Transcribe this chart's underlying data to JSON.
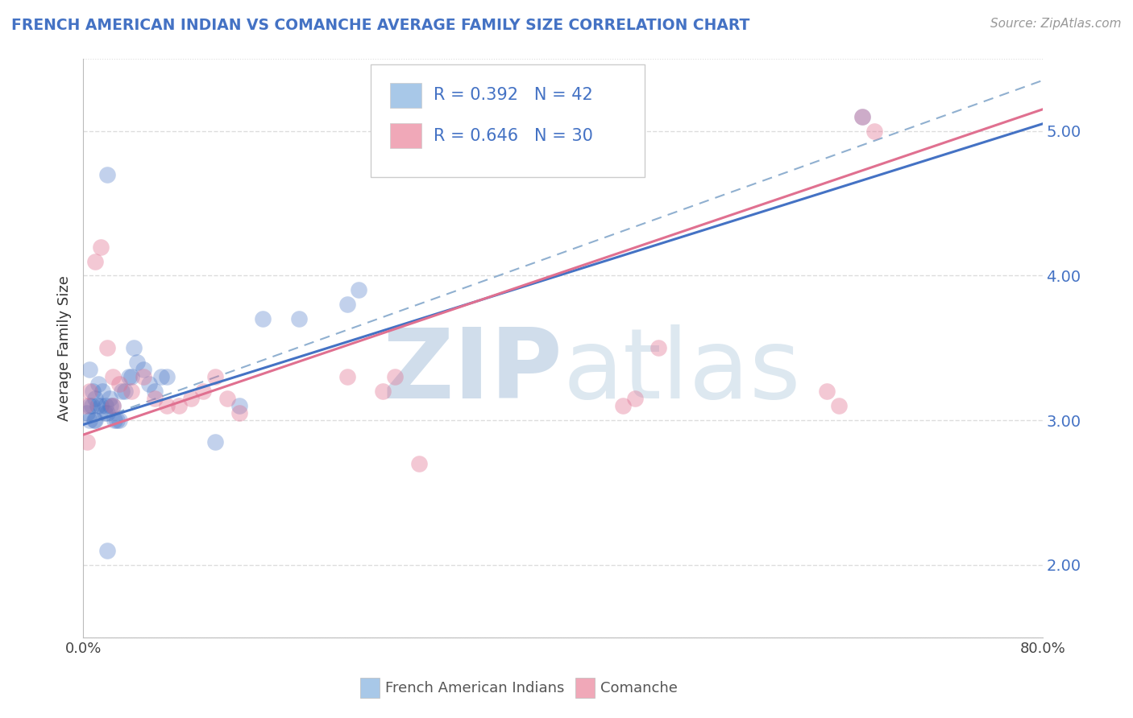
{
  "title": "FRENCH AMERICAN INDIAN VS COMANCHE AVERAGE FAMILY SIZE CORRELATION CHART",
  "source": "Source: ZipAtlas.com",
  "ylabel": "Average Family Size",
  "xlim": [
    0,
    0.8
  ],
  "ylim": [
    1.5,
    5.5
  ],
  "yticks": [
    2.0,
    3.0,
    4.0,
    5.0
  ],
  "xticks": [
    0.0,
    0.1,
    0.2,
    0.3,
    0.4,
    0.5,
    0.6,
    0.7,
    0.8
  ],
  "xtick_labels": [
    "0.0%",
    "",
    "",
    "",
    "",
    "",
    "",
    "",
    "80.0%"
  ],
  "legend_entries": [
    {
      "label": "French American Indians",
      "color": "#a8c8e8",
      "R": 0.392,
      "N": 42
    },
    {
      "label": "Comanche",
      "color": "#f0a8b8",
      "R": 0.646,
      "N": 30
    }
  ],
  "blue_scatter_x": [
    0.003,
    0.005,
    0.005,
    0.005,
    0.007,
    0.008,
    0.009,
    0.01,
    0.01,
    0.012,
    0.013,
    0.015,
    0.016,
    0.018,
    0.019,
    0.02,
    0.02,
    0.022,
    0.023,
    0.025,
    0.026,
    0.028,
    0.03,
    0.032,
    0.035,
    0.038,
    0.04,
    0.042,
    0.045,
    0.05,
    0.055,
    0.06,
    0.065,
    0.07,
    0.11,
    0.13,
    0.15,
    0.18,
    0.22,
    0.23,
    0.65,
    0.02
  ],
  "blue_scatter_y": [
    3.05,
    3.35,
    3.1,
    3.0,
    3.1,
    3.2,
    3.0,
    3.15,
    3.0,
    3.1,
    3.25,
    3.1,
    3.2,
    3.05,
    3.1,
    3.05,
    4.7,
    3.15,
    3.1,
    3.1,
    3.0,
    3.0,
    3.0,
    3.2,
    3.2,
    3.3,
    3.3,
    3.5,
    3.4,
    3.35,
    3.25,
    3.2,
    3.3,
    3.3,
    2.85,
    3.1,
    3.7,
    3.7,
    3.8,
    3.9,
    5.1,
    2.1
  ],
  "pink_scatter_x": [
    0.002,
    0.003,
    0.005,
    0.01,
    0.015,
    0.02,
    0.025,
    0.025,
    0.03,
    0.04,
    0.05,
    0.06,
    0.07,
    0.08,
    0.09,
    0.1,
    0.11,
    0.12,
    0.13,
    0.22,
    0.25,
    0.26,
    0.28,
    0.45,
    0.46,
    0.48,
    0.62,
    0.63,
    0.65,
    0.66
  ],
  "pink_scatter_y": [
    3.1,
    2.85,
    3.2,
    4.1,
    4.2,
    3.5,
    3.1,
    3.3,
    3.25,
    3.2,
    3.3,
    3.15,
    3.1,
    3.1,
    3.15,
    3.2,
    3.3,
    3.15,
    3.05,
    3.3,
    3.2,
    3.3,
    2.7,
    3.1,
    3.15,
    3.5,
    3.2,
    3.1,
    5.1,
    5.0
  ],
  "blue_line_x0": 0.0,
  "blue_line_y0": 2.97,
  "blue_line_x1": 0.8,
  "blue_line_y1": 5.05,
  "pink_line_x0": 0.0,
  "pink_line_y0": 2.9,
  "pink_line_x1": 0.8,
  "pink_line_y1": 5.15,
  "dashed_line_x0": 0.0,
  "dashed_line_y0": 2.97,
  "dashed_line_x1": 0.8,
  "dashed_line_y1": 5.35,
  "blue_line_color": "#4472c4",
  "pink_line_color": "#e07090",
  "dashed_line_color": "#90b0d0",
  "watermark_zip": "ZIP",
  "watermark_atlas": "atlas",
  "watermark_color": "#d0dde8",
  "background_color": "#ffffff",
  "grid_color": "#dddddd"
}
